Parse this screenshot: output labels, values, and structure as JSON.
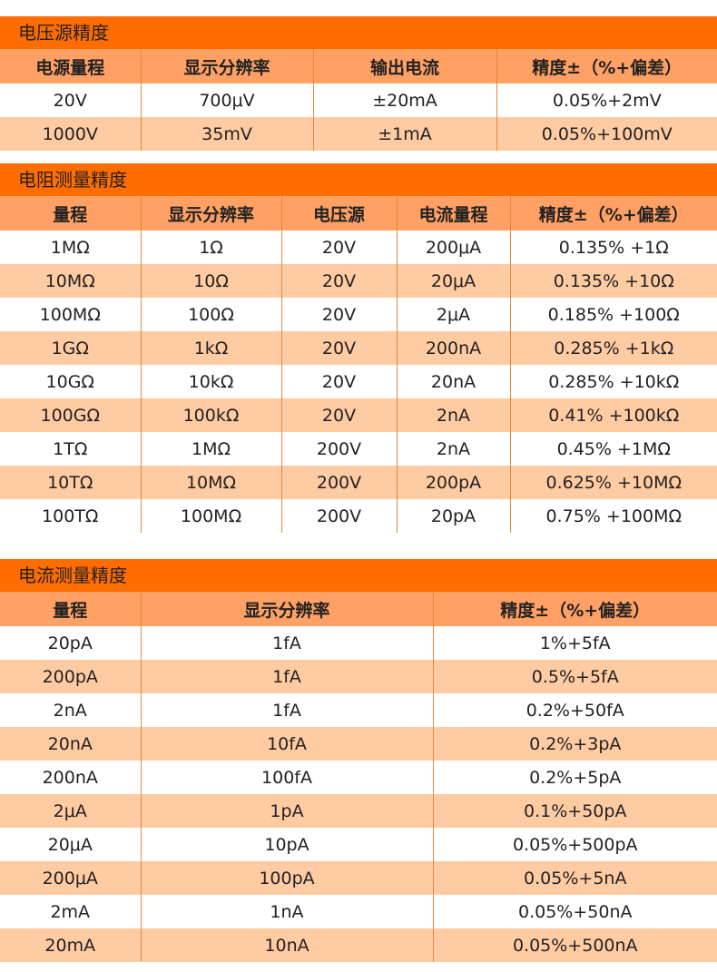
{
  "voltage": {
    "title": "电压源精度",
    "headers": [
      "电源量程",
      "显示分辨率",
      "输出电流",
      "精度±（%+偏差）"
    ],
    "rows": [
      [
        "20V",
        "700μV",
        "±20mA",
        "0.05%+2mV"
      ],
      [
        "1000V",
        "35mV",
        "±1mA",
        "0.05%+100mV"
      ]
    ]
  },
  "resistance": {
    "title": "电阻测量精度",
    "headers": [
      "量程",
      "显示分辨率",
      "电压源",
      "电流量程",
      "精度±（%+偏差）"
    ],
    "rows": [
      [
        "1MΩ",
        "1Ω",
        "20V",
        "200μA",
        "0.135% +1Ω"
      ],
      [
        "10MΩ",
        "10Ω",
        "20V",
        "20μA",
        "0.135% +10Ω"
      ],
      [
        "100MΩ",
        "100Ω",
        "20V",
        "2μA",
        "0.185% +100Ω"
      ],
      [
        "1GΩ",
        "1kΩ",
        "20V",
        "200nA",
        "0.285% +1kΩ"
      ],
      [
        "10GΩ",
        "10kΩ",
        "20V",
        "20nA",
        "0.285% +10kΩ"
      ],
      [
        "100GΩ",
        "100kΩ",
        "20V",
        "2nA",
        "0.41% +100kΩ"
      ],
      [
        "1TΩ",
        "1MΩ",
        "200V",
        "2nA",
        "0.45% +1MΩ"
      ],
      [
        "10TΩ",
        "10MΩ",
        "200V",
        "200pA",
        "0.625% +10MΩ"
      ],
      [
        "100TΩ",
        "100MΩ",
        "200V",
        "20pA",
        "0.75% +100MΩ"
      ]
    ]
  },
  "current": {
    "title": "电流测量精度",
    "headers": [
      "量程",
      "显示分辨率",
      "精度±（%+偏差）"
    ],
    "rows": [
      [
        "20pA",
        "1fA",
        "1%+5fA"
      ],
      [
        "200pA",
        "1fA",
        "0.5%+5fA"
      ],
      [
        "2nA",
        "1fA",
        "0.2%+50fA"
      ],
      [
        "20nA",
        "10fA",
        "0.2%+3pA"
      ],
      [
        "200nA",
        "100fA",
        "0.2%+5pA"
      ],
      [
        "2μA",
        "1pA",
        "0.1%+50pA"
      ],
      [
        "20μA",
        "10pA",
        "0.05%+500pA"
      ],
      [
        "200μA",
        "100pA",
        "0.05%+5nA"
      ],
      [
        "2mA",
        "1nA",
        "0.05%+50nA"
      ],
      [
        "20mA",
        "10nA",
        "0.05%+500nA"
      ]
    ]
  }
}
